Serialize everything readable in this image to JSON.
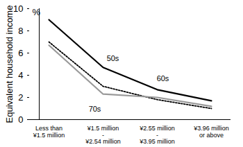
{
  "chart_data": {
    "type": "line",
    "y_label": "Equivalent household income",
    "annotations": [
      "%"
    ],
    "categories": [
      "Less than\n¥1.5 million",
      "¥1.5 million\n-\n¥2.54 million",
      "¥2.55 million\n-\n¥3.95 million",
      "¥3.96 million\nor above"
    ],
    "series": [
      {
        "name": "60s",
        "color": "#000000",
        "line_style": "solid",
        "values": [
          9.0,
          4.7,
          2.7,
          1.7
        ]
      },
      {
        "name": "50s",
        "color": "#000000",
        "line_style": "dotted",
        "values": [
          7.0,
          3.0,
          1.8,
          1.0
        ]
      },
      {
        "name": "70s",
        "color": "#999999",
        "line_style": "solid",
        "values": [
          6.7,
          2.3,
          2.0,
          1.2
        ]
      }
    ],
    "ylim": [
      0,
      10
    ],
    "yticks": [
      0,
      2,
      4,
      6,
      8,
      10
    ],
    "grid": false
  }
}
